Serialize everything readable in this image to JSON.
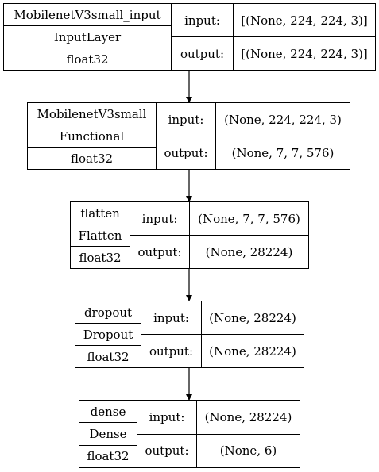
{
  "labels": {
    "input": "input:",
    "output": "output:"
  },
  "layers": [
    {
      "name": "MobilenetV3small_input",
      "type": "InputLayer",
      "dtype": "float32",
      "input_shape": "[(None, 224, 224, 3)]",
      "output_shape": "[(None, 224, 224, 3)]"
    },
    {
      "name": "MobilenetV3small",
      "type": "Functional",
      "dtype": "float32",
      "input_shape": "(None, 224, 224, 3)",
      "output_shape": "(None, 7, 7, 576)"
    },
    {
      "name": "flatten",
      "type": "Flatten",
      "dtype": "float32",
      "input_shape": "(None, 7, 7, 576)",
      "output_shape": "(None, 28224)"
    },
    {
      "name": "dropout",
      "type": "Dropout",
      "dtype": "float32",
      "input_shape": "(None, 28224)",
      "output_shape": "(None, 28224)"
    },
    {
      "name": "dense",
      "type": "Dense",
      "dtype": "float32",
      "input_shape": "(None, 28224)",
      "output_shape": "(None, 6)"
    }
  ]
}
